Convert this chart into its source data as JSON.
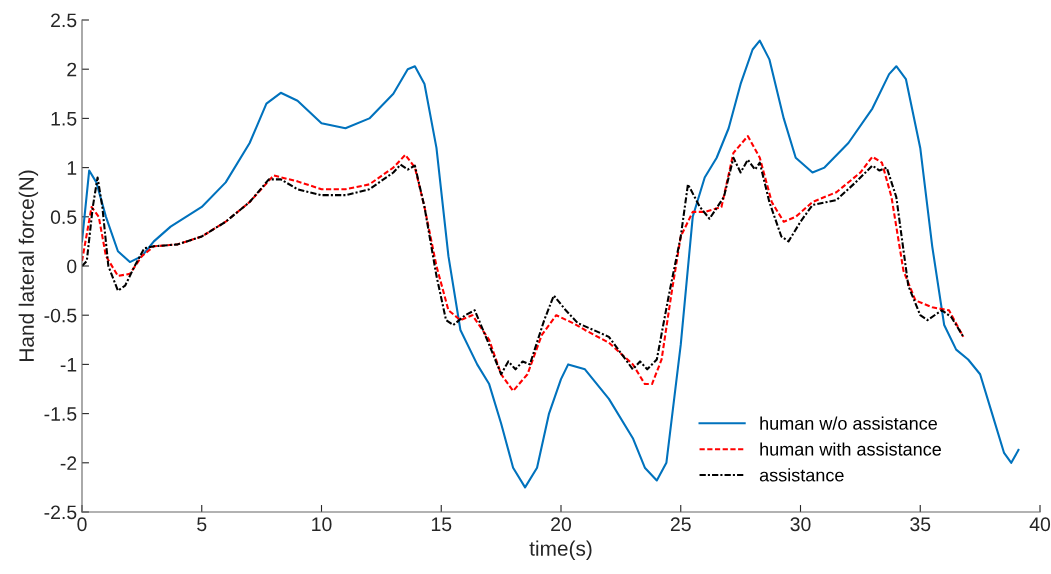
{
  "chart_data": {
    "type": "line",
    "xlabel": "time(s)",
    "ylabel": "Hand lateral force(N)",
    "xlim": [
      0,
      40
    ],
    "xticks": [
      0,
      5,
      10,
      15,
      20,
      25,
      30,
      35,
      40
    ],
    "ylim": [
      -2.5,
      2.5
    ],
    "yticks": [
      -2.5,
      -2,
      -1.5,
      -1,
      -0.5,
      0,
      0.5,
      1,
      1.5,
      2,
      2.5
    ],
    "grid": false,
    "legend": "bottom right",
    "marker": "none",
    "series": [
      {
        "name": "human w/o assistance",
        "color": "#0072bd",
        "line_style": "solid",
        "x": [
          0,
          0.3,
          0.6,
          1.0,
          1.5,
          2.0,
          2.5,
          3,
          3.7,
          5,
          6,
          7,
          7.7,
          8.3,
          9,
          10,
          11,
          12,
          13,
          13.6,
          13.9,
          14.3,
          14.8,
          15.3,
          15.8,
          16.5,
          17,
          17.5,
          18,
          18.5,
          19,
          19.5,
          20,
          20.3,
          21,
          22,
          23,
          23.5,
          24,
          24.4,
          25,
          25.5,
          26,
          26.5,
          27,
          27.5,
          28,
          28.3,
          28.7,
          29.3,
          29.8,
          30.5,
          31,
          32,
          33,
          33.7,
          34.0,
          34.4,
          35,
          35.5,
          36,
          36.5,
          37,
          37.5,
          38,
          38.5,
          38.8,
          39.1
        ],
        "values": [
          0.25,
          0.97,
          0.85,
          0.5,
          0.15,
          0.04,
          0.1,
          0.25,
          0.4,
          0.6,
          0.85,
          1.25,
          1.65,
          1.76,
          1.68,
          1.45,
          1.4,
          1.5,
          1.75,
          2.0,
          2.03,
          1.85,
          1.2,
          0.1,
          -0.65,
          -1.0,
          -1.2,
          -1.6,
          -2.05,
          -2.25,
          -2.05,
          -1.5,
          -1.15,
          -1.0,
          -1.05,
          -1.35,
          -1.75,
          -2.05,
          -2.18,
          -2.0,
          -0.8,
          0.5,
          0.9,
          1.1,
          1.4,
          1.85,
          2.2,
          2.29,
          2.1,
          1.5,
          1.1,
          0.95,
          1.0,
          1.25,
          1.6,
          1.95,
          2.03,
          1.9,
          1.2,
          0.2,
          -0.6,
          -0.85,
          -0.95,
          -1.1,
          -1.5,
          -1.9,
          -2.0,
          -1.87
        ]
      },
      {
        "name": "human with assistance",
        "color": "#ff0000",
        "line_style": "dashed",
        "x": [
          0,
          0.4,
          0.7,
          1.0,
          1.5,
          2.0,
          2.5,
          3,
          4,
          5,
          6,
          7,
          8,
          9,
          10,
          11,
          12,
          13,
          13.5,
          13.9,
          14.3,
          14.8,
          15.3,
          15.8,
          16.3,
          17,
          17.5,
          18,
          18.6,
          19.2,
          19.8,
          20.5,
          21,
          22,
          23,
          23.5,
          23.8,
          24.2,
          24.6,
          25,
          25.5,
          26,
          26.7,
          27.2,
          27.8,
          28.3,
          28.8,
          29.3,
          29.8,
          30.5,
          31.5,
          32.5,
          33,
          33.4,
          33.8,
          34.3,
          34.8,
          35.5,
          36.2,
          36.8
        ],
        "values": [
          0.05,
          0.6,
          0.5,
          0.1,
          -0.1,
          -0.08,
          0.1,
          0.2,
          0.22,
          0.3,
          0.45,
          0.65,
          0.92,
          0.86,
          0.78,
          0.78,
          0.83,
          1.0,
          1.13,
          1.0,
          0.6,
          0.0,
          -0.45,
          -0.55,
          -0.5,
          -0.75,
          -1.1,
          -1.27,
          -1.1,
          -0.7,
          -0.5,
          -0.58,
          -0.65,
          -0.78,
          -1.0,
          -1.2,
          -1.2,
          -0.95,
          -0.3,
          0.3,
          0.55,
          0.55,
          0.6,
          1.15,
          1.32,
          1.1,
          0.65,
          0.45,
          0.5,
          0.65,
          0.75,
          0.95,
          1.11,
          1.05,
          0.7,
          -0.05,
          -0.35,
          -0.42,
          -0.45,
          -0.72
        ]
      },
      {
        "name": "assistance",
        "color": "#000000",
        "line_style": "dashdot",
        "x": [
          0,
          0.2,
          0.45,
          0.65,
          0.85,
          1.1,
          1.5,
          1.8,
          2.2,
          2.6,
          3,
          4,
          5,
          6,
          7,
          7.8,
          8.3,
          9,
          10,
          11,
          12,
          13,
          13.3,
          13.6,
          13.9,
          14.3,
          14.8,
          15.2,
          15.5,
          16,
          16.4,
          17,
          17.5,
          17.8,
          18.1,
          18.4,
          18.7,
          19.3,
          19.7,
          20.2,
          20.7,
          22,
          23,
          23.3,
          23.6,
          24.0,
          24.5,
          25.0,
          25.3,
          25.8,
          26.2,
          26.8,
          27.2,
          27.5,
          27.8,
          28.1,
          28.3,
          28.7,
          29.2,
          29.5,
          30,
          30.5,
          31.5,
          32.3,
          33.0,
          33.3,
          33.6,
          34.0,
          34.5,
          35,
          35.3,
          35.9,
          36.3,
          36.8
        ],
        "values": [
          0.0,
          0.05,
          0.6,
          0.9,
          0.6,
          0.0,
          -0.25,
          -0.2,
          0.0,
          0.18,
          0.2,
          0.22,
          0.3,
          0.45,
          0.65,
          0.88,
          0.88,
          0.78,
          0.72,
          0.72,
          0.78,
          0.95,
          1.03,
          0.98,
          1.02,
          0.6,
          -0.1,
          -0.55,
          -0.6,
          -0.5,
          -0.45,
          -0.8,
          -1.1,
          -0.97,
          -1.05,
          -0.97,
          -1.0,
          -0.55,
          -0.3,
          -0.45,
          -0.58,
          -0.72,
          -1.05,
          -0.97,
          -1.05,
          -0.95,
          -0.3,
          0.3,
          0.83,
          0.6,
          0.48,
          0.7,
          1.1,
          0.95,
          1.08,
          0.98,
          1.05,
          0.65,
          0.3,
          0.25,
          0.45,
          0.62,
          0.67,
          0.85,
          1.02,
          0.97,
          1.0,
          0.7,
          -0.2,
          -0.5,
          -0.55,
          -0.45,
          -0.52,
          -0.72
        ]
      }
    ]
  }
}
